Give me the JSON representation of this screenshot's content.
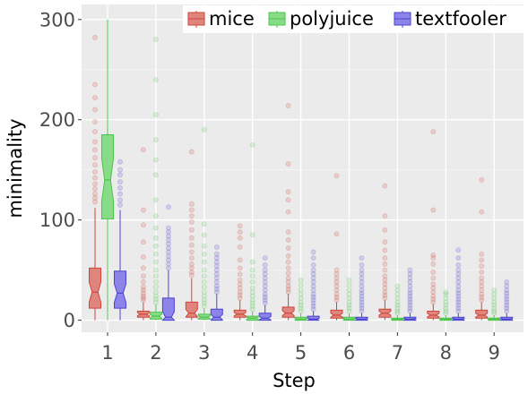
{
  "chart_data": {
    "type": "boxplot",
    "xlabel": "Step",
    "ylabel": "minimality",
    "categories": [
      "1",
      "2",
      "3",
      "4",
      "5",
      "6",
      "7",
      "8",
      "9"
    ],
    "ylim": [
      -12,
      315
    ],
    "yticks": [
      0,
      100,
      200,
      300
    ],
    "ytick_labels": [
      "0",
      "100",
      "200",
      "300"
    ],
    "grid": true,
    "notched": true,
    "legend_position": "top-right",
    "series": [
      {
        "name": "mice",
        "color": "#e0857d",
        "edge": "#d0453a",
        "boxes": [
          {
            "whislo": 0,
            "q1": 12,
            "med": 28,
            "q3": 52,
            "whishi": 112,
            "fliers": [
              118,
              122,
              126,
              131,
              136,
              142,
              148,
              155,
              162,
              170,
              178,
              188,
              198,
              210,
              222,
              235,
              282
            ]
          },
          {
            "whislo": 0,
            "q1": 3,
            "med": 6,
            "q3": 9,
            "whishi": 18,
            "fliers": [
              20,
              22,
              24,
              27,
              30,
              33,
              38,
              44,
              52,
              63,
              78,
              95,
              110,
              170
            ]
          },
          {
            "whislo": 0,
            "q1": 3,
            "med": 7,
            "q3": 18,
            "whishi": 42,
            "fliers": [
              45,
              48,
              52,
              56,
              62,
              68,
              75,
              82,
              90,
              98,
              104,
              110,
              116,
              168
            ]
          },
          {
            "whislo": 0,
            "q1": 3,
            "med": 6,
            "q3": 10,
            "whishi": 20,
            "fliers": [
              22,
              25,
              28,
              32,
              36,
              40,
              46,
              52,
              60,
              73,
              82,
              88,
              94
            ]
          },
          {
            "whislo": 0,
            "q1": 3,
            "med": 7,
            "q3": 13,
            "whishi": 26,
            "fliers": [
              28,
              31,
              34,
              38,
              42,
              47,
              52,
              58,
              64,
              72,
              80,
              88,
              108,
              120,
              128,
              156,
              214
            ]
          },
          {
            "whislo": 0,
            "q1": 2,
            "med": 5,
            "q3": 10,
            "whishi": 18,
            "fliers": [
              20,
              23,
              26,
              30,
              34,
              38,
              42,
              46,
              50,
              86,
              144
            ]
          },
          {
            "whislo": 0,
            "q1": 3,
            "med": 7,
            "q3": 11,
            "whishi": 20,
            "fliers": [
              22,
              25,
              28,
              32,
              36,
              40,
              44,
              50,
              56,
              62,
              70,
              78,
              90,
              104,
              134
            ]
          },
          {
            "whislo": 0,
            "q1": 2,
            "med": 5,
            "q3": 9,
            "whishi": 16,
            "fliers": [
              18,
              21,
              24,
              28,
              32,
              36,
              42,
              48,
              56,
              62,
              65,
              110,
              188
            ]
          },
          {
            "whislo": 0,
            "q1": 2,
            "med": 5,
            "q3": 10,
            "whishi": 18,
            "fliers": [
              20,
              23,
              26,
              30,
              34,
              38,
              42,
              48,
              54,
              60,
              66,
              108,
              140
            ]
          }
        ]
      },
      {
        "name": "polyjuice",
        "color": "#88dc88",
        "edge": "#4cc34c",
        "boxes": [
          {
            "whislo": 0,
            "q1": 101,
            "med": 140,
            "q3": 185,
            "whishi": 300,
            "fliers": []
          },
          {
            "whislo": 0,
            "q1": 1,
            "med": 4,
            "q3": 8,
            "whishi": 16,
            "fliers": [
              18,
              21,
              24,
              28,
              33,
              38,
              44,
              50,
              58,
              66,
              74,
              82,
              92,
              104,
              120,
              145,
              160,
              180,
              205,
              240,
              280
            ]
          },
          {
            "whislo": 0,
            "q1": 1,
            "med": 3,
            "q3": 6,
            "whishi": 12,
            "fliers": [
              14,
              17,
              20,
              24,
              28,
              33,
              38,
              44,
              50,
              58,
              66,
              74,
              85,
              96,
              190
            ]
          },
          {
            "whislo": 0,
            "q1": 0,
            "med": 2,
            "q3": 4,
            "whishi": 9,
            "fliers": [
              11,
              14,
              17,
              20,
              24,
              28,
              32,
              38,
              44,
              50,
              58,
              85,
              175
            ]
          },
          {
            "whislo": 0,
            "q1": 0,
            "med": 1,
            "q3": 3,
            "whishi": 7,
            "fliers": [
              9,
              12,
              15,
              18,
              22,
              26,
              30,
              35,
              40
            ]
          },
          {
            "whislo": 0,
            "q1": 0,
            "med": 1,
            "q3": 3,
            "whishi": 7,
            "fliers": [
              9,
              12,
              15,
              18,
              22,
              26,
              30,
              35,
              40
            ]
          },
          {
            "whislo": 0,
            "q1": 0,
            "med": 1,
            "q3": 2,
            "whishi": 5,
            "fliers": [
              7,
              9,
              12,
              15,
              18,
              22,
              26,
              30,
              34
            ]
          },
          {
            "whislo": 0,
            "q1": 0,
            "med": 1,
            "q3": 2,
            "whishi": 5,
            "fliers": [
              7,
              9,
              12,
              15,
              18,
              22,
              26,
              28
            ]
          },
          {
            "whislo": 0,
            "q1": 0,
            "med": 1,
            "q3": 2,
            "whishi": 5,
            "fliers": [
              7,
              9,
              12,
              15,
              18,
              22,
              26,
              30
            ]
          }
        ]
      },
      {
        "name": "textfooler",
        "color": "#8c84e8",
        "edge": "#4b44d2",
        "boxes": [
          {
            "whislo": 0,
            "q1": 12,
            "med": 27,
            "q3": 49,
            "whishi": 110,
            "fliers": [
              115,
              120,
              126,
              132,
              138,
              145,
              150,
              158
            ]
          },
          {
            "whislo": 0,
            "q1": 0,
            "med": 3,
            "q3": 22,
            "whishi": 50,
            "fliers": [
              52,
              56,
              60,
              64,
              68,
              72,
              76,
              80,
              84,
              88,
              92,
              113
            ]
          },
          {
            "whislo": 0,
            "q1": 0,
            "med": 3,
            "q3": 11,
            "whishi": 26,
            "fliers": [
              28,
              31,
              34,
              38,
              42,
              46,
              50,
              54,
              58,
              62,
              66,
              73
            ]
          },
          {
            "whislo": 0,
            "q1": 0,
            "med": 2,
            "q3": 7,
            "whishi": 15,
            "fliers": [
              17,
              20,
              23,
              26,
              30,
              34,
              38,
              42,
              46,
              50,
              55,
              62
            ]
          },
          {
            "whislo": 0,
            "q1": 0,
            "med": 1,
            "q3": 4,
            "whishi": 9,
            "fliers": [
              11,
              14,
              17,
              20,
              23,
              26,
              30,
              34,
              38,
              42,
              46,
              50,
              55,
              62,
              68
            ]
          },
          {
            "whislo": 0,
            "q1": 0,
            "med": 1,
            "q3": 3,
            "whishi": 7,
            "fliers": [
              9,
              12,
              15,
              18,
              21,
              24,
              27,
              30,
              34,
              38,
              42,
              46,
              50,
              55,
              62
            ]
          },
          {
            "whislo": 0,
            "q1": 0,
            "med": 1,
            "q3": 3,
            "whishi": 7,
            "fliers": [
              9,
              12,
              15,
              18,
              21,
              24,
              27,
              30,
              34,
              38,
              42,
              46,
              50
            ]
          },
          {
            "whislo": 0,
            "q1": 0,
            "med": 1,
            "q3": 3,
            "whishi": 7,
            "fliers": [
              9,
              12,
              15,
              18,
              21,
              24,
              27,
              30,
              34,
              38,
              42,
              46,
              50,
              55,
              62,
              70
            ]
          },
          {
            "whislo": 0,
            "q1": 0,
            "med": 1,
            "q3": 3,
            "whishi": 7,
            "fliers": [
              9,
              12,
              15,
              18,
              21,
              24,
              27,
              30,
              34,
              38
            ]
          }
        ]
      }
    ]
  }
}
